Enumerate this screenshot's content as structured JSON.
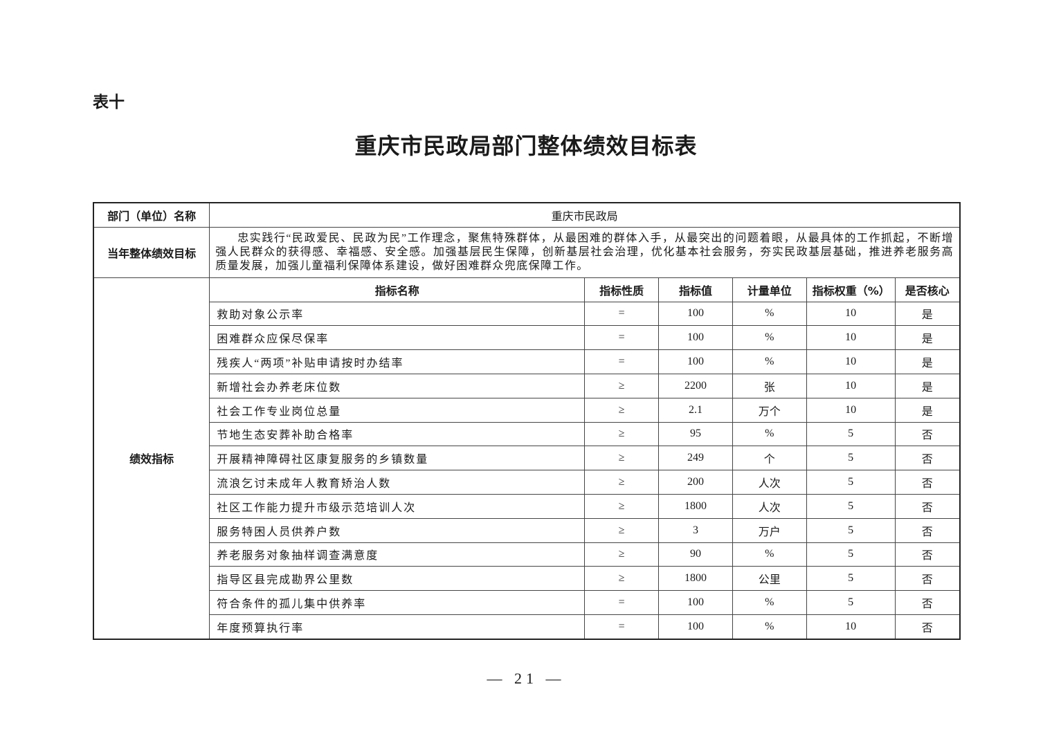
{
  "table_label": "表十",
  "title": "重庆市民政局部门整体绩效目标表",
  "dept_label": "部门（单位）名称",
  "dept_value": "重庆市民政局",
  "goal_label": "当年整体绩效目标",
  "goal_text": "忠实践行“民政爱民、民政为民”工作理念，聚焦特殊群体，从最困难的群体入手，从最突出的问题着眼，从最具体的工作抓起，不断增强人民群众的获得感、幸福感、安全感。加强基层民生保障，创新基层社会治理，优化基本社会服务，夯实民政基层基础，推进养老服务高质量发展，加强儿童福利保障体系建设，做好困难群众兜底保障工作。",
  "indicators_label": "绩效指标",
  "columns": [
    "指标名称",
    "指标性质",
    "指标值",
    "计量单位",
    "指标权重（%）",
    "是否核心"
  ],
  "rows": [
    [
      "救助对象公示率",
      "=",
      "100",
      "%",
      "10",
      "是"
    ],
    [
      "困难群众应保尽保率",
      "=",
      "100",
      "%",
      "10",
      "是"
    ],
    [
      "残疾人“两项”补贴申请按时办结率",
      "=",
      "100",
      "%",
      "10",
      "是"
    ],
    [
      "新增社会办养老床位数",
      "≥",
      "2200",
      "张",
      "10",
      "是"
    ],
    [
      "社会工作专业岗位总量",
      "≥",
      "2.1",
      "万个",
      "10",
      "是"
    ],
    [
      "节地生态安葬补助合格率",
      "≥",
      "95",
      "%",
      "5",
      "否"
    ],
    [
      "开展精神障碍社区康复服务的乡镇数量",
      "≥",
      "249",
      "个",
      "5",
      "否"
    ],
    [
      "流浪乞讨未成年人教育矫治人数",
      "≥",
      "200",
      "人次",
      "5",
      "否"
    ],
    [
      "社区工作能力提升市级示范培训人次",
      "≥",
      "1800",
      "人次",
      "5",
      "否"
    ],
    [
      "服务特困人员供养户数",
      "≥",
      "3",
      "万户",
      "5",
      "否"
    ],
    [
      "养老服务对象抽样调查满意度",
      "≥",
      "90",
      "%",
      "5",
      "否"
    ],
    [
      "指导区县完成勘界公里数",
      "≥",
      "1800",
      "公里",
      "5",
      "否"
    ],
    [
      "符合条件的孤儿集中供养率",
      "=",
      "100",
      "%",
      "5",
      "否"
    ],
    [
      "年度预算执行率",
      "=",
      "100",
      "%",
      "10",
      "否"
    ]
  ],
  "page_number": "— 21 —"
}
